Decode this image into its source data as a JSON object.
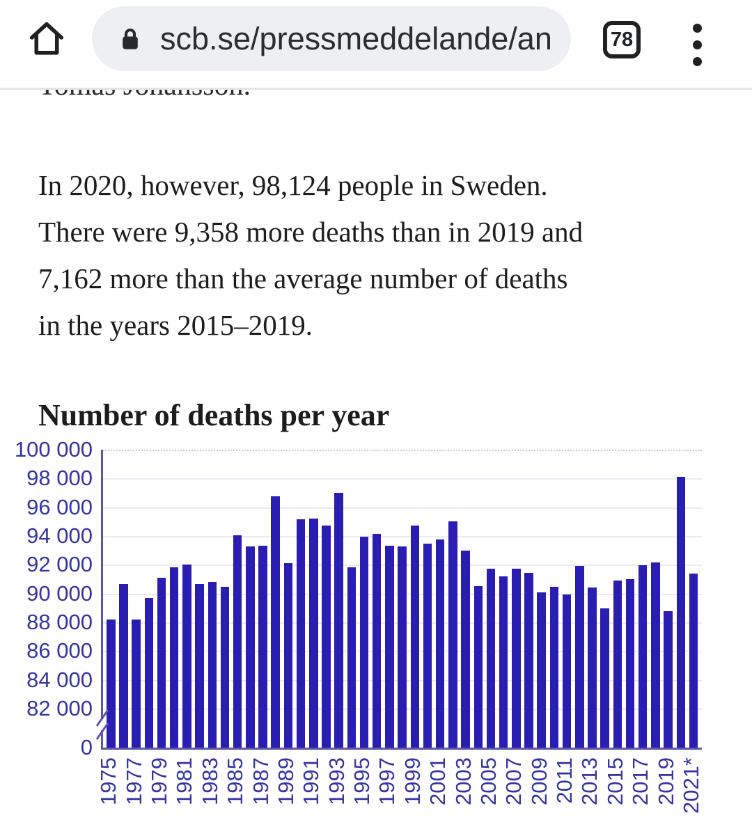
{
  "browser": {
    "url": "scb.se/pressmeddelande/an",
    "tab_count": "78"
  },
  "page": {
    "clipped_line": "Tomas Johansson.",
    "paragraph_lines": [
      "In 2020, however, 98,124 people in Sweden.",
      "There were 9,358 more deaths than in 2019 and",
      "7,162 more than the average number of deaths",
      "in the years 2015–2019."
    ],
    "chart_heading": "Number of deaths per year"
  },
  "chart_data": {
    "type": "bar",
    "title": "Number of deaths per year",
    "x": [
      1975,
      1976,
      1977,
      1978,
      1979,
      1980,
      1981,
      1982,
      1983,
      1984,
      1985,
      1986,
      1987,
      1988,
      1989,
      1990,
      1991,
      1992,
      1993,
      1994,
      1995,
      1996,
      1997,
      1998,
      1999,
      2000,
      2001,
      2002,
      2003,
      2004,
      2005,
      2006,
      2007,
      2008,
      2009,
      2010,
      2011,
      2012,
      2013,
      2014,
      2015,
      2016,
      2017,
      2018,
      2019,
      2020,
      2021
    ],
    "values": [
      88208,
      90677,
      88202,
      89681,
      91074,
      91800,
      92034,
      90671,
      90791,
      90483,
      94032,
      93295,
      93307,
      96743,
      92110,
      95161,
      95202,
      94710,
      97008,
      91844,
      93929,
      94133,
      93326,
      93271,
      94726,
      93461,
      93752,
      95009,
      92961,
      90532,
      91710,
      91177,
      91729,
      91449,
      90080,
      90487,
      89938,
      91938,
      90402,
      88976,
      90907,
      90982,
      91972,
      92185,
      88766,
      98124,
      91400
    ],
    "x_tick_labels": [
      "1975",
      "1977",
      "1979",
      "1981",
      "1983",
      "1985",
      "1987",
      "1989",
      "1991",
      "1993",
      "1995",
      "1997",
      "1999",
      "2001",
      "2003",
      "2005",
      "2007",
      "2009",
      "2011",
      "2013",
      "2015",
      "2017",
      "2019",
      "2021*"
    ],
    "y_tick_values": [
      100000,
      98000,
      96000,
      94000,
      92000,
      90000,
      88000,
      86000,
      84000,
      82000,
      0
    ],
    "y_tick_labels": [
      "100 000",
      "98 000",
      "96 000",
      "94 000",
      "92 000",
      "90 000",
      "88 000",
      "86 000",
      "84 000",
      "82 000",
      "0"
    ],
    "ylim": [
      82000,
      100000
    ],
    "axis_break": true,
    "grid": true,
    "legend": "none",
    "bar_color": "#2a1db2",
    "label_color": "#3434a2",
    "axis_color": "#5a57aa",
    "gridline_color": "#ebebf5"
  }
}
